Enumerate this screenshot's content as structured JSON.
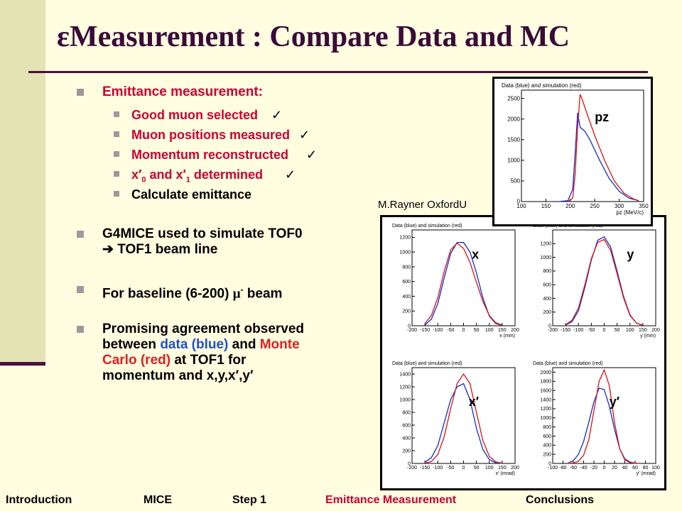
{
  "title": {
    "epsilon": "ε",
    "text": "Measurement : Compare Data and MC"
  },
  "bullets": {
    "emittance": "Emittance measurement:",
    "sub": [
      {
        "text": "Good muon selected",
        "check": "✓"
      },
      {
        "text": "Muon positions measured",
        "check": "✓"
      },
      {
        "text": "Momentum reconstructed",
        "check": "✓"
      },
      {
        "text_a": "x′",
        "sub_a": "0",
        "text_b": " and x′",
        "sub_b": "1",
        "text_c": " determined",
        "check": "✓"
      },
      {
        "text": "Calculate emittance"
      }
    ],
    "g4mice_1": "G4MICE used to simulate TOF0",
    "g4mice_2": "➔ TOF1 beam line",
    "baseline_a": "For baseline (6-200) ",
    "baseline_mu": "μ",
    "baseline_sup": "-",
    "baseline_b": " beam",
    "promising_1": "Promising agreement observed",
    "promising_2a": "between ",
    "promising_2b": "data (blue)",
    "promising_2c": " and ",
    "promising_2d": "Monte",
    "promising_3a": "Carlo (red)",
    "promising_3b": " at TOF1 for",
    "promising_4": "momentum and x,y,x′,y′"
  },
  "credit": "M.Rayner OxfordU",
  "footer": [
    "Introduction",
    "MICE",
    "Step 1",
    "Emittance Measurement",
    "Conclusions"
  ],
  "colors": {
    "data": "#1030d0",
    "mc": "#e01010",
    "title": "#3a0a3a",
    "highlight": "#cc0033"
  },
  "chart_data": [
    {
      "type": "line",
      "id": "pz",
      "panel_title": "Data (blue) and simulation (red)",
      "label": "pz",
      "xlabel": "pz (MeV/c)",
      "xlim": [
        100,
        350
      ],
      "ylim": [
        0,
        2700
      ],
      "xticks": [
        100,
        150,
        200,
        250,
        300,
        350
      ],
      "yticks": [
        0,
        500,
        1000,
        1500,
        2000,
        2500
      ],
      "series": [
        {
          "role": "data",
          "x": [
            175,
            195,
            205,
            210,
            215,
            220,
            230,
            240,
            260,
            280,
            300,
            320,
            340
          ],
          "y": [
            0,
            20,
            300,
            1200,
            2150,
            1800,
            1700,
            1500,
            1000,
            550,
            250,
            80,
            20
          ]
        },
        {
          "role": "mc",
          "x": [
            195,
            205,
            210,
            215,
            220,
            225,
            235,
            250,
            270,
            290,
            310,
            330,
            340
          ],
          "y": [
            0,
            80,
            700,
            1800,
            2600,
            2450,
            2100,
            1600,
            1000,
            500,
            200,
            60,
            20
          ]
        }
      ]
    },
    {
      "type": "line",
      "id": "x",
      "panel_title": "Data (blue) and simulation (red)",
      "label": "x",
      "xlabel": "x (mm)",
      "xlim": [
        -200,
        200
      ],
      "ylim": [
        0,
        1300
      ],
      "xticks": [
        -200,
        -150,
        -100,
        -50,
        0,
        50,
        100,
        150,
        200
      ],
      "yticks": [
        0,
        200,
        400,
        600,
        800,
        1000,
        1200
      ],
      "series": [
        {
          "role": "data",
          "x": [
            -150,
            -125,
            -100,
            -75,
            -50,
            -25,
            0,
            25,
            50,
            75,
            100,
            125,
            150
          ],
          "y": [
            10,
            90,
            300,
            650,
            980,
            1130,
            1130,
            1000,
            720,
            380,
            130,
            30,
            5
          ]
        },
        {
          "role": "mc",
          "x": [
            -150,
            -125,
            -100,
            -75,
            -50,
            -25,
            0,
            25,
            50,
            75,
            100,
            125,
            150
          ],
          "y": [
            30,
            140,
            380,
            740,
            1030,
            1120,
            1050,
            860,
            590,
            330,
            140,
            40,
            10
          ]
        }
      ]
    },
    {
      "type": "line",
      "id": "y",
      "panel_title": "Data (blue) and simulation (red)",
      "label": "y",
      "xlabel": "y (mm)",
      "xlim": [
        -200,
        200
      ],
      "ylim": [
        0,
        1400
      ],
      "xticks": [
        -200,
        -150,
        -100,
        -50,
        0,
        50,
        100,
        150,
        200
      ],
      "yticks": [
        0,
        200,
        400,
        600,
        800,
        1000,
        1200
      ],
      "series": [
        {
          "role": "data",
          "x": [
            -150,
            -125,
            -100,
            -75,
            -50,
            -25,
            0,
            25,
            50,
            75,
            100,
            125,
            150
          ],
          "y": [
            10,
            60,
            220,
            560,
            960,
            1250,
            1300,
            1150,
            800,
            430,
            160,
            40,
            5
          ]
        },
        {
          "role": "mc",
          "x": [
            -150,
            -125,
            -100,
            -75,
            -50,
            -25,
            0,
            25,
            50,
            75,
            100,
            125,
            150
          ],
          "y": [
            15,
            80,
            260,
            600,
            980,
            1220,
            1260,
            1100,
            760,
            410,
            150,
            40,
            8
          ]
        }
      ]
    },
    {
      "type": "line",
      "id": "xp",
      "panel_title": "Data (blue) and simulation (red)",
      "label": "x′",
      "xlabel": "x′ (mrad)",
      "xlim": [
        -200,
        200
      ],
      "ylim": [
        0,
        1500
      ],
      "xticks": [
        -200,
        -150,
        -100,
        -50,
        0,
        50,
        100,
        150,
        200
      ],
      "yticks": [
        0,
        200,
        400,
        600,
        800,
        1000,
        1200,
        1400
      ],
      "series": [
        {
          "role": "data",
          "x": [
            -150,
            -125,
            -100,
            -75,
            -50,
            -25,
            0,
            25,
            50,
            75,
            100,
            125,
            150
          ],
          "y": [
            20,
            90,
            280,
            640,
            1000,
            1200,
            1250,
            1000,
            550,
            220,
            60,
            10,
            2
          ]
        },
        {
          "role": "mc",
          "x": [
            -150,
            -125,
            -100,
            -75,
            -50,
            -25,
            0,
            25,
            50,
            75,
            100,
            125,
            150
          ],
          "y": [
            5,
            30,
            140,
            420,
            860,
            1250,
            1400,
            1250,
            800,
            360,
            110,
            25,
            5
          ]
        }
      ]
    },
    {
      "type": "line",
      "id": "yp",
      "panel_title": "Data (blue) and simulation (red)",
      "label": "y′",
      "xlabel": "y′ (mrad)",
      "xlim": [
        -100,
        100
      ],
      "ylim": [
        0,
        2100
      ],
      "xticks": [
        -100,
        -80,
        -60,
        -40,
        -20,
        0,
        20,
        40,
        60,
        80,
        100
      ],
      "yticks": [
        0,
        200,
        400,
        600,
        800,
        1000,
        1200,
        1400,
        1600,
        1800,
        2000
      ],
      "series": [
        {
          "role": "data",
          "x": [
            -70,
            -60,
            -50,
            -40,
            -30,
            -20,
            -10,
            0,
            10,
            20,
            30,
            40,
            50,
            60,
            70
          ],
          "y": [
            10,
            60,
            200,
            480,
            900,
            1350,
            1650,
            1620,
            1250,
            750,
            320,
            100,
            30,
            8,
            2
          ]
        },
        {
          "role": "mc",
          "x": [
            -70,
            -60,
            -50,
            -40,
            -30,
            -20,
            -10,
            0,
            10,
            20,
            30,
            40,
            50,
            60,
            70
          ],
          "y": [
            2,
            10,
            50,
            180,
            520,
            1150,
            1800,
            2050,
            1700,
            900,
            320,
            80,
            15,
            3,
            1
          ]
        }
      ]
    }
  ]
}
